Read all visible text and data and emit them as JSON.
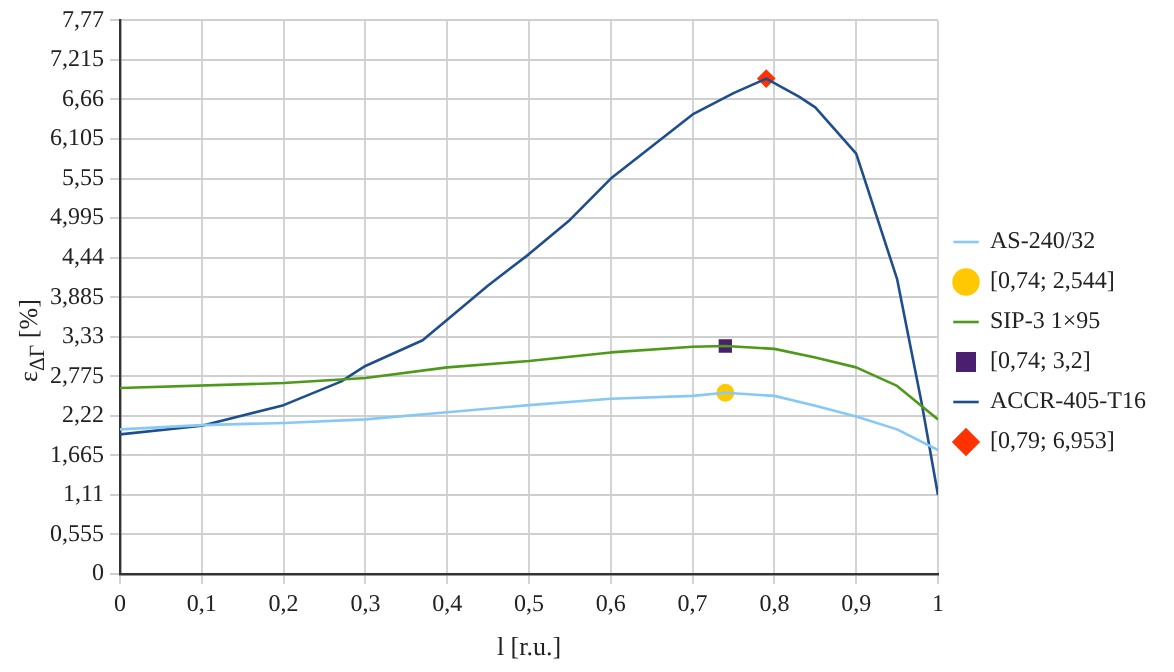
{
  "chart_data": {
    "type": "line",
    "xlabel": "l [r.u.]",
    "ylabel": "ε$_{ΔΓ}$ [%]",
    "xlim": [
      0,
      1
    ],
    "xticks": [
      0,
      {
        "value": 0.1,
        "label": "0,1"
      },
      {
        "value": 0.2,
        "label": "0,2"
      },
      {
        "value": 0.3,
        "label": "0,3"
      },
      {
        "value": 0.4,
        "label": "0,4"
      },
      {
        "value": 0.5,
        "label": "0,5"
      },
      {
        "value": 0.6,
        "label": "0,6"
      },
      {
        "value": 0.7,
        "label": "0,7"
      },
      {
        "value": 0.8,
        "label": "0,8"
      },
      {
        "value": 0.9,
        "label": "0,9"
      },
      1
    ],
    "ylim": [
      0,
      7.77
    ],
    "yticks": [
      0,
      {
        "value": 0.555,
        "label": "0,555"
      },
      {
        "value": 1.11,
        "label": "1,11"
      },
      {
        "value": 1.665,
        "label": "1,665"
      },
      {
        "value": 2.22,
        "label": "2,22"
      },
      {
        "value": 2.775,
        "label": "2,775"
      },
      {
        "value": 3.33,
        "label": "3,33"
      },
      {
        "value": 3.885,
        "label": "3,885"
      },
      {
        "value": 4.44,
        "label": "4,44"
      },
      {
        "value": 4.995,
        "label": "4,995"
      },
      {
        "value": 5.55,
        "label": "5,55"
      },
      {
        "value": 6.105,
        "label": "6,105"
      },
      {
        "value": 6.66,
        "label": "6,66"
      },
      {
        "value": 7.215,
        "label": "7,215"
      },
      {
        "value": 7.77,
        "label": "7,77"
      }
    ],
    "grid": true,
    "legend": "right",
    "series": [
      {
        "name": "AS-240/32",
        "type": "line",
        "color": "#87c8f5",
        "marker": "none",
        "x": [
          0,
          0.1,
          0.2,
          0.3,
          0.4,
          0.5,
          0.6,
          0.7,
          0.74,
          0.8,
          0.85,
          0.9,
          0.95,
          1
        ],
        "values": [
          2.03,
          2.09,
          2.12,
          2.17,
          2.27,
          2.37,
          2.46,
          2.5,
          2.544,
          2.5,
          2.36,
          2.21,
          2.03,
          1.74
        ]
      },
      {
        "name": "[0,74; 2,544]",
        "type": "scatter",
        "color": "#ffc800",
        "marker": "circle",
        "x": [
          0.74
        ],
        "values": [
          2.544
        ]
      },
      {
        "name": "SIP-3 1×95",
        "type": "line",
        "color": "#4d9a1a",
        "marker": "none",
        "x": [
          0,
          0.2,
          0.3,
          0.4,
          0.5,
          0.6,
          0.7,
          0.74,
          0.8,
          0.85,
          0.9,
          0.95,
          1
        ],
        "values": [
          2.61,
          2.68,
          2.75,
          2.9,
          2.99,
          3.11,
          3.19,
          3.2,
          3.16,
          3.04,
          2.9,
          2.64,
          2.17
        ]
      },
      {
        "name": "[0,74; 3,2]",
        "type": "scatter",
        "color": "#4b1f6f",
        "marker": "square",
        "x": [
          0.74
        ],
        "values": [
          3.2
        ]
      },
      {
        "name": "ACCR-405-T16",
        "type": "line",
        "color": "#1f4e8c",
        "marker": "none",
        "x": [
          0,
          0.1,
          0.2,
          0.27,
          0.3,
          0.37,
          0.4,
          0.45,
          0.5,
          0.55,
          0.6,
          0.65,
          0.7,
          0.75,
          0.79,
          0.83,
          0.85,
          0.9,
          0.95,
          0.98,
          1
        ],
        "values": [
          1.96,
          2.08,
          2.37,
          2.7,
          2.92,
          3.28,
          3.57,
          4.05,
          4.49,
          4.97,
          5.55,
          6.0,
          6.45,
          6.75,
          6.953,
          6.7,
          6.55,
          5.9,
          4.14,
          2.4,
          1.11
        ]
      },
      {
        "name": "[0,79; 6,953]",
        "type": "scatter",
        "color": "#ff3300",
        "marker": "diamond",
        "x": [
          0.79
        ],
        "values": [
          6.953
        ]
      }
    ]
  }
}
